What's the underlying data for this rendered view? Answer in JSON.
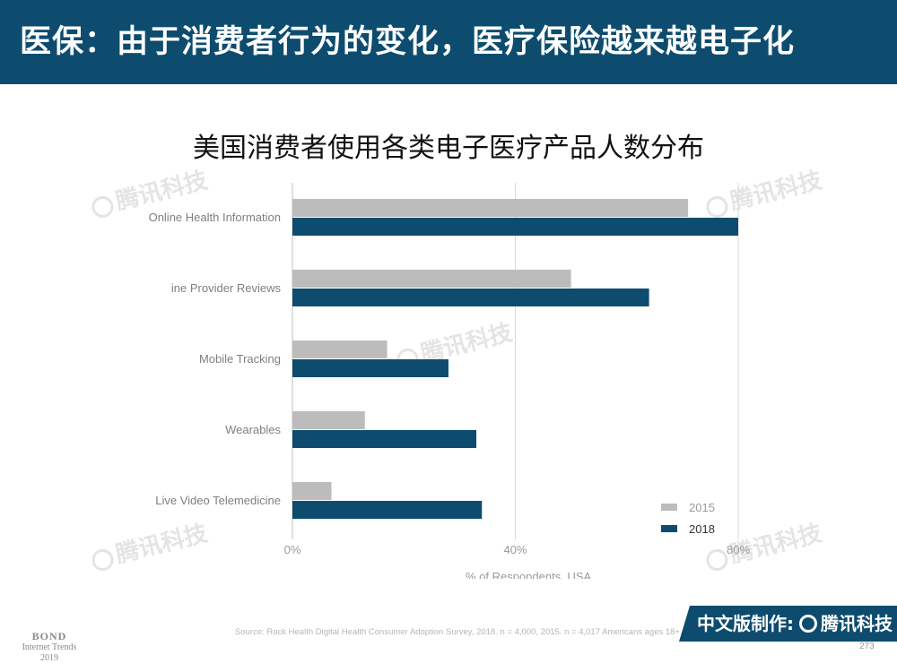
{
  "header": {
    "title": "医保：由于消费者行为的变化，医疗保险越来越电子化"
  },
  "chart_data": {
    "type": "bar",
    "orientation": "horizontal",
    "title": "美国消费者使用各类电子医疗产品人数分布",
    "categories": [
      "Online Health Information",
      "ine Provider Reviews",
      "Mobile Tracking",
      "Wearables",
      "Live Video Telemedicine"
    ],
    "series": [
      {
        "name": "2015",
        "color": "#bcbcbc",
        "values": [
          71,
          50,
          17,
          13,
          7
        ]
      },
      {
        "name": "2018",
        "color": "#0d4c6e",
        "values": [
          80,
          64,
          28,
          33,
          34
        ]
      }
    ],
    "xlim": [
      0,
      80
    ],
    "xticks": [
      0,
      40,
      80
    ],
    "xtick_labels": [
      "0%",
      "40%",
      "80%"
    ],
    "xlabel": "% of Respondents, USA",
    "legend_position": "bottom-right",
    "grid": true
  },
  "watermark": {
    "text": "腾讯科技"
  },
  "footer": {
    "source": "Source: Rock Health Digital Health Consumer Adoption Survey, 2018. n = 4,000, 2015. n = 4,017 Americans ages 18+",
    "brand_label": "中文版制作:",
    "brand_name": "腾讯科技",
    "page_number": "273",
    "bond_title": "BOND",
    "bond_subtitle": "Internet Trends",
    "bond_year": "2019"
  }
}
